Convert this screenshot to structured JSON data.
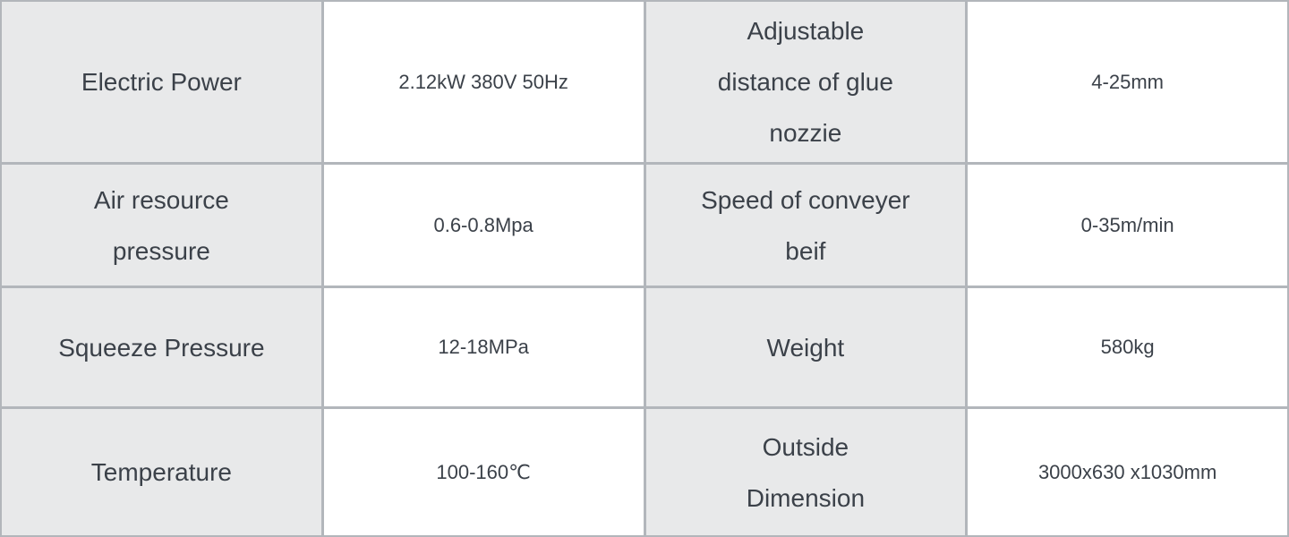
{
  "table": {
    "rows": [
      {
        "cells": [
          {
            "kind": "label",
            "text": "Electric Power"
          },
          {
            "kind": "value",
            "text": "2.12kW 380V 50Hz"
          },
          {
            "kind": "label",
            "text": "Adjustable\ndistance of glue\nnozzie"
          },
          {
            "kind": "value",
            "text": "4-25mm"
          }
        ]
      },
      {
        "cells": [
          {
            "kind": "label",
            "text": "Air resource\npressure"
          },
          {
            "kind": "value",
            "text": "0.6-0.8Mpa"
          },
          {
            "kind": "label",
            "text": "Speed of conveyer\nbeif"
          },
          {
            "kind": "value",
            "text": "0-35m/min"
          }
        ]
      },
      {
        "cells": [
          {
            "kind": "label",
            "text": "Squeeze Pressure"
          },
          {
            "kind": "value",
            "text": "12-18MPa"
          },
          {
            "kind": "label",
            "text": "Weight"
          },
          {
            "kind": "value",
            "text": "580kg"
          }
        ]
      },
      {
        "cells": [
          {
            "kind": "label",
            "text": "Temperature"
          },
          {
            "kind": "value",
            "text": "100-160℃"
          },
          {
            "kind": "label",
            "text": "Outside\nDimension"
          },
          {
            "kind": "value",
            "text": "3000x630 x1030mm"
          }
        ]
      }
    ]
  },
  "colors": {
    "border_color": "#b2b6bb",
    "label_bg": "#e8e9ea",
    "value_bg": "#ffffff",
    "text_color": "#3b4149"
  }
}
